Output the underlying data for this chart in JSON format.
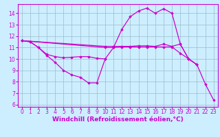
{
  "xlabel": "Windchill (Refroidissement éolien,°C)",
  "bg_color": "#cceeff",
  "line_color": "#cc00cc",
  "xlim": [
    -0.5,
    23.5
  ],
  "ylim": [
    5.8,
    14.8
  ],
  "xticks": [
    0,
    1,
    2,
    3,
    4,
    5,
    6,
    7,
    8,
    9,
    10,
    11,
    12,
    13,
    14,
    15,
    16,
    17,
    18,
    19,
    20,
    21,
    22,
    23
  ],
  "yticks": [
    6,
    7,
    8,
    9,
    10,
    11,
    12,
    13,
    14
  ],
  "lines": [
    {
      "x": [
        0,
        1,
        2,
        3,
        4,
        5,
        6,
        7,
        8,
        9,
        10
      ],
      "y": [
        11.6,
        11.5,
        11.0,
        10.3,
        9.7,
        9.0,
        8.6,
        8.4,
        7.9,
        7.9,
        10.0
      ]
    },
    {
      "x": [
        0,
        1,
        2,
        3,
        4,
        5,
        6,
        7,
        8,
        9,
        10,
        11,
        12,
        13,
        14,
        15,
        16,
        17,
        18,
        19,
        20,
        21,
        22,
        23
      ],
      "y": [
        11.6,
        11.5,
        11.0,
        10.4,
        10.2,
        10.1,
        10.15,
        10.2,
        10.2,
        10.05,
        10.0,
        11.0,
        12.6,
        13.7,
        14.2,
        14.45,
        14.0,
        14.4,
        14.0,
        11.3,
        10.0,
        9.5,
        7.8,
        6.4
      ]
    },
    {
      "x": [
        0,
        10,
        11,
        12,
        13,
        14,
        15,
        16,
        17,
        18,
        19,
        20,
        21
      ],
      "y": [
        11.6,
        11.1,
        11.1,
        11.1,
        11.1,
        11.15,
        11.15,
        11.1,
        11.3,
        11.1,
        11.3,
        10.0,
        9.5
      ]
    },
    {
      "x": [
        0,
        10,
        11,
        12,
        13,
        14,
        15,
        16,
        17,
        18,
        19,
        20,
        21
      ],
      "y": [
        11.6,
        11.0,
        11.0,
        11.05,
        11.05,
        11.05,
        11.05,
        11.05,
        11.05,
        11.05,
        10.5,
        10.0,
        9.5
      ]
    }
  ],
  "grid_color": "#99bbcc",
  "xlabel_fontsize": 6.5,
  "tick_fontsize": 5.5
}
